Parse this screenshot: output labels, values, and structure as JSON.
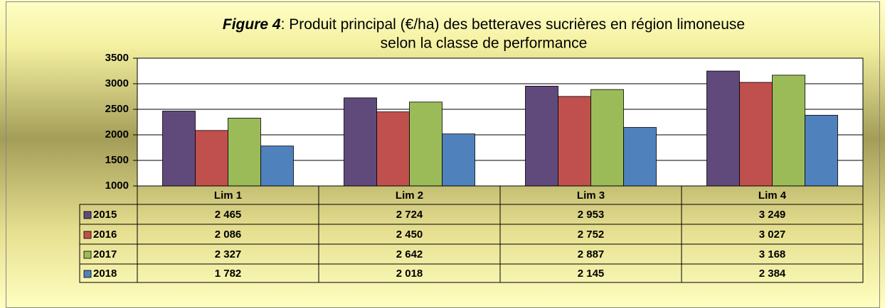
{
  "chart_data": {
    "type": "bar",
    "figure_label": "Figure 4",
    "title_lines": [
      ": Produit principal (€/ha) des betteraves sucrières en région limoneuse",
      "selon la classe de performance"
    ],
    "categories": [
      "Lim 1",
      "Lim 2",
      "Lim 3",
      "Lim 4"
    ],
    "series": [
      {
        "name": "2015",
        "color": "#604a7b",
        "values": [
          2465,
          2724,
          2953,
          3249
        ],
        "value_labels": [
          "2 465",
          "2 724",
          "2 953",
          "3 249"
        ]
      },
      {
        "name": "2016",
        "color": "#c0504d",
        "values": [
          2086,
          2450,
          2752,
          3027
        ],
        "value_labels": [
          "2 086",
          "2 450",
          "2 752",
          "3 027"
        ]
      },
      {
        "name": "2017",
        "color": "#9bbb59",
        "values": [
          2327,
          2642,
          2887,
          3168
        ],
        "value_labels": [
          "2 327",
          "2 642",
          "2 887",
          "3 168"
        ]
      },
      {
        "name": "2018",
        "color": "#4f81bd",
        "values": [
          1782,
          2018,
          2145,
          2384
        ],
        "value_labels": [
          "1 782",
          "2 018",
          "2 145",
          "2 384"
        ]
      }
    ],
    "ylim": [
      1000,
      3500
    ],
    "yticks": [
      1000,
      1500,
      2000,
      2500,
      3000,
      3500
    ],
    "grid": true
  }
}
